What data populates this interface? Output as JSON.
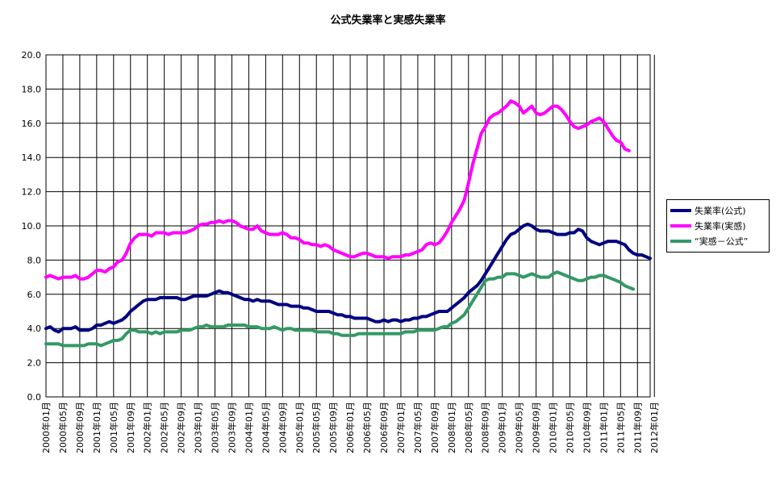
{
  "chart_data": {
    "type": "line",
    "title": "公式失業率と実感失業率",
    "xlabel": "",
    "ylabel": "",
    "ylim": [
      0,
      20
    ],
    "yticks": [
      "0.0",
      "2.0",
      "4.0",
      "6.0",
      "8.0",
      "10.0",
      "12.0",
      "14.0",
      "16.0",
      "18.0",
      "20.0"
    ],
    "grid": true,
    "legend_position": "right",
    "x_tick_labels": [
      "2000年01月",
      "2000年05月",
      "2000年09月",
      "2001年01月",
      "2001年05月",
      "2001年09月",
      "2002年01月",
      "2002年05月",
      "2002年09月",
      "2003年01月",
      "2003年05月",
      "2003年09月",
      "2004年01月",
      "2004年05月",
      "2004年09月",
      "2005年01月",
      "2005年05月",
      "2005年09月",
      "2006年01月",
      "2006年05月",
      "2006年09月",
      "2007年01月",
      "2007年05月",
      "2007年09月",
      "2008年01月",
      "2008年05月",
      "2008年09月",
      "2009年01月",
      "2009年05月",
      "2009年09月",
      "2010年01月",
      "2010年05月",
      "2010年09月",
      "2011年01月",
      "2011年05月",
      "2011年09月",
      "2012年01月"
    ],
    "x_start": "2000-01",
    "series": [
      {
        "name": "失業率(公式)",
        "color": "#000080",
        "values": [
          4.0,
          4.1,
          3.9,
          3.8,
          4.0,
          4.0,
          4.0,
          4.1,
          3.9,
          3.9,
          3.9,
          4.0,
          4.2,
          4.2,
          4.3,
          4.4,
          4.3,
          4.4,
          4.5,
          4.7,
          5.0,
          5.2,
          5.4,
          5.6,
          5.7,
          5.7,
          5.7,
          5.8,
          5.8,
          5.8,
          5.8,
          5.8,
          5.7,
          5.7,
          5.8,
          5.9,
          5.9,
          5.9,
          5.9,
          6.0,
          6.1,
          6.2,
          6.1,
          6.1,
          6.0,
          5.9,
          5.8,
          5.7,
          5.7,
          5.6,
          5.7,
          5.6,
          5.6,
          5.6,
          5.5,
          5.4,
          5.4,
          5.4,
          5.3,
          5.3,
          5.3,
          5.2,
          5.2,
          5.1,
          5.0,
          5.0,
          5.0,
          5.0,
          4.9,
          4.8,
          4.8,
          4.7,
          4.7,
          4.6,
          4.6,
          4.6,
          4.6,
          4.5,
          4.4,
          4.4,
          4.5,
          4.4,
          4.5,
          4.5,
          4.4,
          4.5,
          4.5,
          4.6,
          4.6,
          4.7,
          4.7,
          4.8,
          4.9,
          5.0,
          5.0,
          5.0,
          5.2,
          5.4,
          5.6,
          5.8,
          6.1,
          6.3,
          6.5,
          6.8,
          7.2,
          7.6,
          8.0,
          8.4,
          8.8,
          9.2,
          9.5,
          9.6,
          9.8,
          10.0,
          10.1,
          10.0,
          9.8,
          9.7,
          9.7,
          9.7,
          9.6,
          9.5,
          9.5,
          9.5,
          9.6,
          9.6,
          9.8,
          9.7,
          9.3,
          9.1,
          9.0,
          8.9,
          9.0,
          9.1,
          9.1,
          9.1,
          9.0,
          8.9,
          8.6,
          8.4,
          8.3,
          8.3,
          8.2,
          8.1
        ]
      },
      {
        "name": "失業率(実感)",
        "color": "#FF00FF",
        "values": [
          7.0,
          7.1,
          7.0,
          6.9,
          7.0,
          7.0,
          7.0,
          7.1,
          6.9,
          6.9,
          7.0,
          7.2,
          7.4,
          7.4,
          7.3,
          7.5,
          7.6,
          7.9,
          8.0,
          8.4,
          9.0,
          9.3,
          9.5,
          9.5,
          9.5,
          9.4,
          9.6,
          9.6,
          9.6,
          9.5,
          9.6,
          9.6,
          9.6,
          9.6,
          9.7,
          9.8,
          10.0,
          10.1,
          10.1,
          10.2,
          10.2,
          10.3,
          10.2,
          10.3,
          10.3,
          10.2,
          10.0,
          9.9,
          9.8,
          9.8,
          10.0,
          9.7,
          9.6,
          9.5,
          9.5,
          9.5,
          9.6,
          9.5,
          9.3,
          9.3,
          9.2,
          9.0,
          9.0,
          8.9,
          8.9,
          8.8,
          8.9,
          8.8,
          8.6,
          8.5,
          8.4,
          8.3,
          8.2,
          8.2,
          8.3,
          8.4,
          8.4,
          8.3,
          8.2,
          8.2,
          8.2,
          8.1,
          8.2,
          8.2,
          8.2,
          8.3,
          8.3,
          8.4,
          8.5,
          8.6,
          8.9,
          9.0,
          8.9,
          9.0,
          9.3,
          9.7,
          10.2,
          10.6,
          11.0,
          11.5,
          12.5,
          13.6,
          14.5,
          15.4,
          15.8,
          16.3,
          16.5,
          16.6,
          16.8,
          17.0,
          17.3,
          17.2,
          17.0,
          16.6,
          16.8,
          17.0,
          16.6,
          16.5,
          16.6,
          16.8,
          17.0,
          17.0,
          16.8,
          16.5,
          16.1,
          15.8,
          15.7,
          15.8,
          15.9,
          16.1,
          16.2,
          16.3,
          16.1,
          15.7,
          15.3,
          15.0,
          14.9,
          14.5,
          14.4
        ]
      },
      {
        "name": "“実感－公式”",
        "color": "#339966",
        "values": [
          3.1,
          3.1,
          3.1,
          3.1,
          3.0,
          3.0,
          3.0,
          3.0,
          3.0,
          3.0,
          3.1,
          3.1,
          3.1,
          3.0,
          3.1,
          3.2,
          3.3,
          3.3,
          3.4,
          3.7,
          3.9,
          3.9,
          3.8,
          3.8,
          3.8,
          3.7,
          3.8,
          3.7,
          3.8,
          3.8,
          3.8,
          3.8,
          3.9,
          3.9,
          3.9,
          4.0,
          4.1,
          4.1,
          4.2,
          4.1,
          4.1,
          4.1,
          4.1,
          4.2,
          4.2,
          4.2,
          4.2,
          4.2,
          4.1,
          4.1,
          4.1,
          4.0,
          4.0,
          4.0,
          4.1,
          4.0,
          3.9,
          4.0,
          4.0,
          3.9,
          3.9,
          3.9,
          3.9,
          3.9,
          3.8,
          3.8,
          3.8,
          3.8,
          3.7,
          3.7,
          3.6,
          3.6,
          3.6,
          3.6,
          3.7,
          3.7,
          3.7,
          3.7,
          3.7,
          3.7,
          3.7,
          3.7,
          3.7,
          3.7,
          3.7,
          3.8,
          3.8,
          3.8,
          3.9,
          3.9,
          3.9,
          3.9,
          3.9,
          4.0,
          4.1,
          4.1,
          4.3,
          4.4,
          4.6,
          4.8,
          5.2,
          5.6,
          6.0,
          6.4,
          6.8,
          6.9,
          6.9,
          7.0,
          7.0,
          7.2,
          7.2,
          7.2,
          7.1,
          7.0,
          7.1,
          7.2,
          7.1,
          7.0,
          7.0,
          7.0,
          7.2,
          7.3,
          7.2,
          7.1,
          7.0,
          6.9,
          6.8,
          6.8,
          6.9,
          7.0,
          7.0,
          7.1,
          7.1,
          7.0,
          6.9,
          6.8,
          6.7,
          6.5,
          6.4,
          6.3
        ]
      }
    ]
  }
}
